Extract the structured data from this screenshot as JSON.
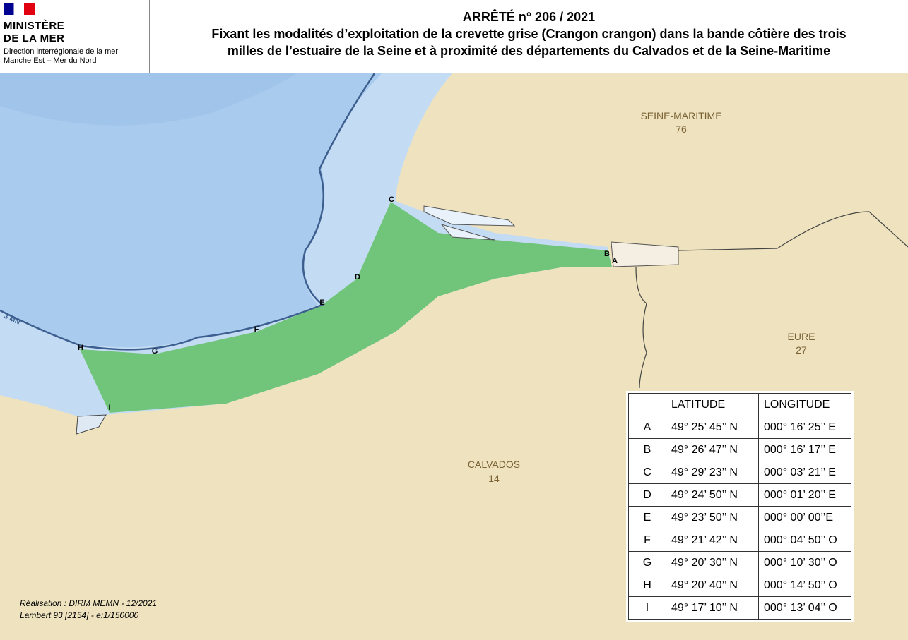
{
  "header": {
    "logo": [
      "MINISTÈRE",
      "DE LA MER"
    ],
    "direction": [
      "Direction interrégionale de la mer",
      "Manche Est – Mer du Nord"
    ],
    "title": "ARRÊTÉ n° 206 / 2021",
    "subtitle": [
      "Fixant les modalités d’exploitation de la crevette grise (Crangon crangon) dans la bande côtière des trois",
      "milles de l’estuaire de la Seine et à proximité des départements du Calvados et de la Seine-Maritime"
    ]
  },
  "map": {
    "regions": [
      {
        "name": "SEINE-MARITIME",
        "code": "76"
      },
      {
        "name": "EURE",
        "code": "27"
      },
      {
        "name": "CALVADOS",
        "code": "14"
      }
    ],
    "limit_label": "3 MN",
    "points": [
      "A",
      "B",
      "C",
      "D",
      "E",
      "F",
      "G",
      "H",
      "I"
    ]
  },
  "table": {
    "headers": [
      "LATITUDE",
      "LONGITUDE"
    ],
    "rows": [
      [
        "A",
        "49° 25’ 45’’ N",
        "000° 16’ 25’’ E"
      ],
      [
        "B",
        "49° 26’ 47’’ N",
        "000° 16’ 17’’ E"
      ],
      [
        "C",
        "49° 29’ 23’’ N",
        "000° 03’ 21’’ E"
      ],
      [
        "D",
        "49° 24’ 50’’ N",
        "000° 01’ 20’’ E"
      ],
      [
        "E",
        "49° 23’ 50’’ N",
        "000° 00’ 00’’E"
      ],
      [
        "F",
        "49° 21’ 42’’ N",
        "000° 04’ 50’’ O"
      ],
      [
        "G",
        "49° 20’ 30’’ N",
        "000° 10’ 30’’ O"
      ],
      [
        "H",
        "49° 20’ 40’’ N",
        "000° 14’ 50’’ O"
      ],
      [
        "I",
        "49° 17’ 10’’ N",
        "000° 13’ 04’’ O"
      ]
    ]
  },
  "credits": [
    "Réalisation : DIRM MEMN - 12/2021",
    "Lambert 93 [2154] - e:1/150000"
  ]
}
